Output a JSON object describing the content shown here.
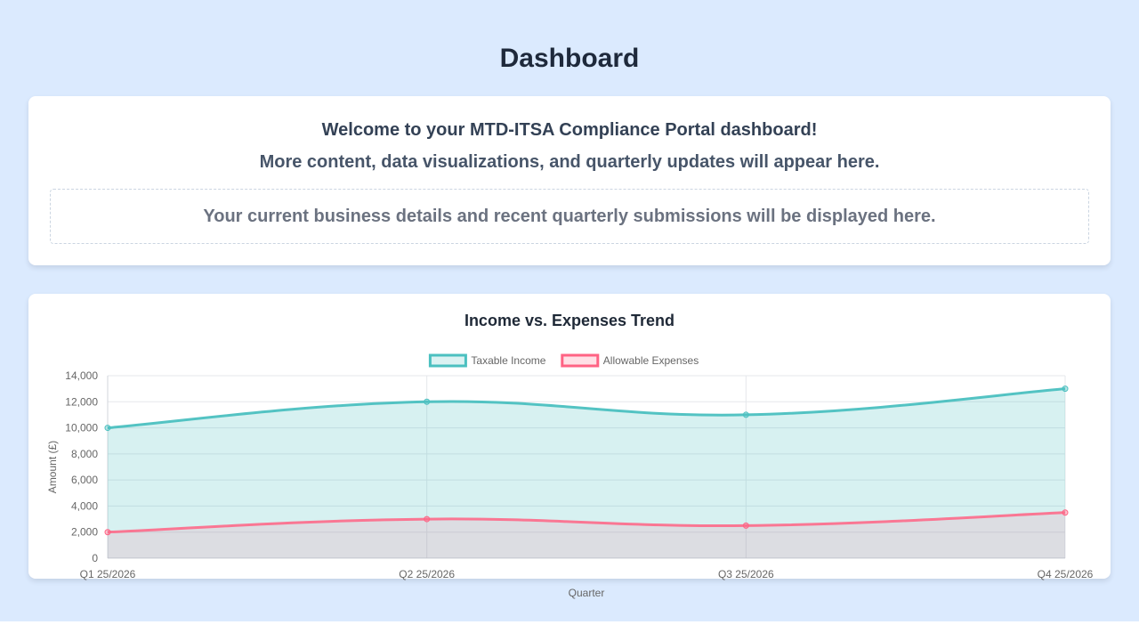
{
  "header": {
    "title": "Dashboard"
  },
  "welcome": {
    "line1": "Welcome to your MTD-ITSA Compliance Portal dashboard!",
    "line2": "More content, data visualizations, and quarterly updates will appear here.",
    "placeholder": "Your current business details and recent quarterly submissions will be displayed here."
  },
  "colors": {
    "page_background": "#dbeafe",
    "income": "#4bc0c0",
    "expenses": "#ff6384"
  },
  "chart_data": {
    "type": "area",
    "title": "Income vs. Expenses Trend",
    "xlabel": "Quarter",
    "ylabel": "Amount (£)",
    "categories": [
      "Q1 25/2026",
      "Q2 25/2026",
      "Q3 25/2026",
      "Q4 25/2026"
    ],
    "series": [
      {
        "name": "Taxable Income",
        "values": [
          10000,
          12000,
          11000,
          13000
        ],
        "color": "#4bc0c0"
      },
      {
        "name": "Allowable Expenses",
        "values": [
          2000,
          3000,
          2500,
          3500
        ],
        "color": "#ff6384"
      }
    ],
    "ylim": [
      0,
      14000
    ],
    "yticks": [
      "0",
      "2,000",
      "4,000",
      "6,000",
      "8,000",
      "10,000",
      "12,000",
      "14,000"
    ],
    "grid": true,
    "legend": "top-center"
  }
}
